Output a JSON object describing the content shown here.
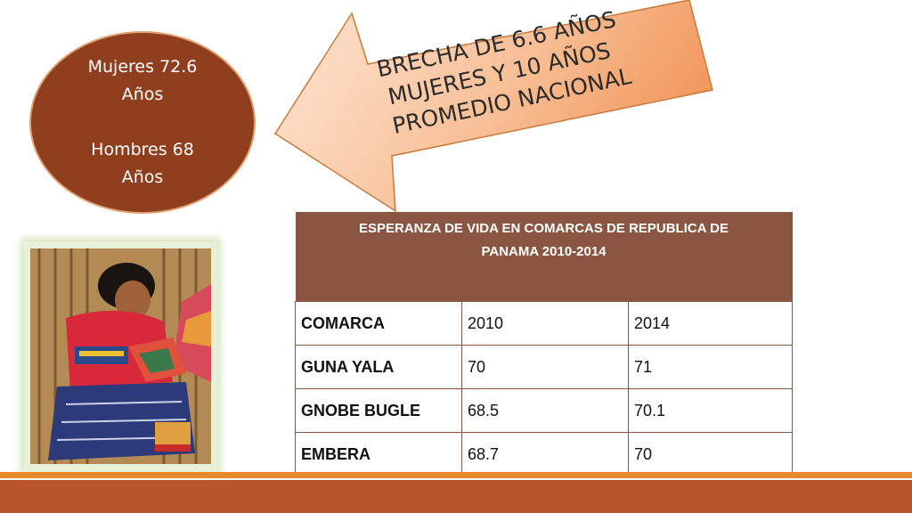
{
  "bubble": {
    "line1": "Mujeres 72.6",
    "line2": "Años",
    "line3": "Hombres  68",
    "line4": "Años"
  },
  "arrow": {
    "line1": "BRECHA DE 6.6 AÑOS",
    "line2": "MUJERES  Y 10 AÑOS",
    "line3": "PROMEDIO NACIONAL"
  },
  "table": {
    "title_line1": "ESPERANZA DE VIDA EN COMARCAS DE REPUBLICA DE",
    "title_line2": "PANAMA 2010-2014",
    "rows": [
      [
        "COMARCA",
        "2010",
        "2014"
      ],
      [
        "GUNA YALA",
        "70",
        "71"
      ],
      [
        "GNOBE BUGLE",
        "68.5",
        "70.1"
      ],
      [
        "EMBERA",
        "68.7",
        "70"
      ]
    ]
  },
  "colors": {
    "oval": "#8f3e1e",
    "table_header": "#8a5642",
    "bar_thin": "#e8892c",
    "bar_thick": "#b8552a"
  }
}
